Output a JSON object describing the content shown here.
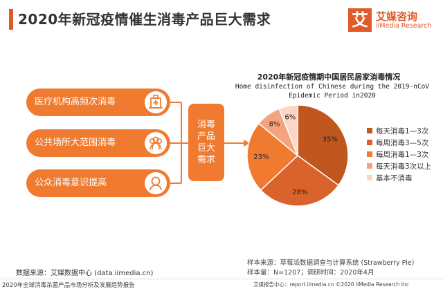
{
  "header": {
    "title": "2020年新冠疫情催生消毒产品巨大需求",
    "logo_mark": "艾",
    "logo_cn": "艾媒咨询",
    "logo_en": "iiMedia Research",
    "accent_color": "#e05a2a"
  },
  "left_items": [
    {
      "label": "医疗机构高频次消毒",
      "icon": "hospital-icon"
    },
    {
      "label": "公共场所大范围消毒",
      "icon": "crowd-icon"
    },
    {
      "label": "公众消毒意识提高",
      "icon": "person-icon"
    }
  ],
  "center_label": "消毒产品巨大需求",
  "chart_data": {
    "type": "pie",
    "title": "2020年新冠疫情期中国居民居家消毒情况",
    "subtitle_lines": [
      "Home disinfection of Chinese during the 2019-nCoV",
      "Epidemic Period in2020"
    ],
    "categories": [
      "每天消毒1—3次",
      "每周消毒3—5次",
      "每周消毒1—3次",
      "每天消毒3次以上",
      "基本不消毒"
    ],
    "values": [
      35,
      28,
      23,
      8,
      6
    ],
    "value_labels": [
      "35%",
      "28%",
      "23%",
      "8%",
      "6%"
    ],
    "colors": [
      "#c0571f",
      "#d9632a",
      "#f07b30",
      "#f4a37e",
      "#fbd5c5"
    ],
    "legend_position": "right"
  },
  "notes": {
    "sample_source": "样本来源：草莓派数据调查与计算系统 (Strawberry Pie)",
    "sample_size": "样本量：N=1207；调研时间：2020年4月",
    "data_source": "数据来源：艾媒数据中心 (data.iimedia.cn)"
  },
  "footer": {
    "left": "2020年全球消毒杀菌产品市场分析及发展趋势报告",
    "right": "艾媒报告中心：report.iimedia.cn ©2020  iiMedia Research Inc"
  }
}
